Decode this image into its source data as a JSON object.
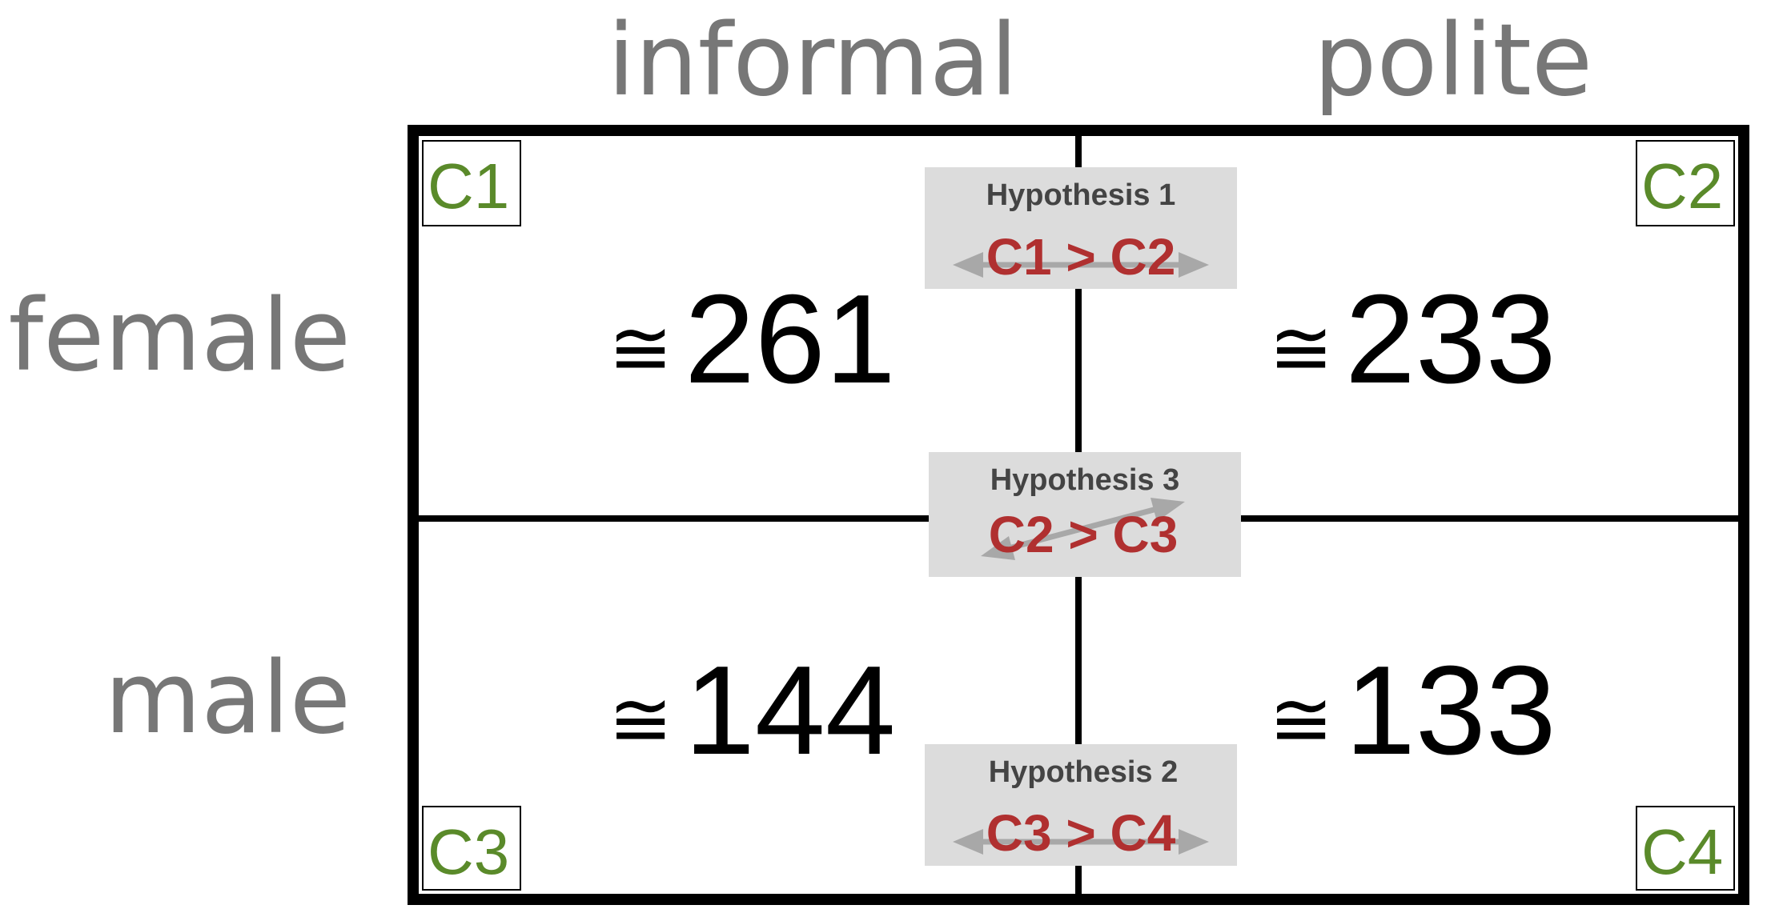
{
  "columns": [
    "informal",
    "polite"
  ],
  "rows": [
    "female",
    "male"
  ],
  "cells": [
    {
      "id": "C1",
      "approx": "≅",
      "value": "261"
    },
    {
      "id": "C2",
      "approx": "≅",
      "value": "233"
    },
    {
      "id": "C3",
      "approx": "≅",
      "value": "144"
    },
    {
      "id": "C4",
      "approx": "≅",
      "value": "133"
    }
  ],
  "hypotheses": [
    {
      "title": "Hypothesis 1",
      "relation": "C1 > C2"
    },
    {
      "title": "Hypothesis 3",
      "relation": "C2 > C3"
    },
    {
      "title": "Hypothesis 2",
      "relation": "C3 > C4"
    }
  ],
  "colors": {
    "header_text": "#777777",
    "cell_label": "#5a8a2a",
    "hypothesis_relation": "#b03030",
    "hypothesis_box": "#dcdcdc"
  }
}
